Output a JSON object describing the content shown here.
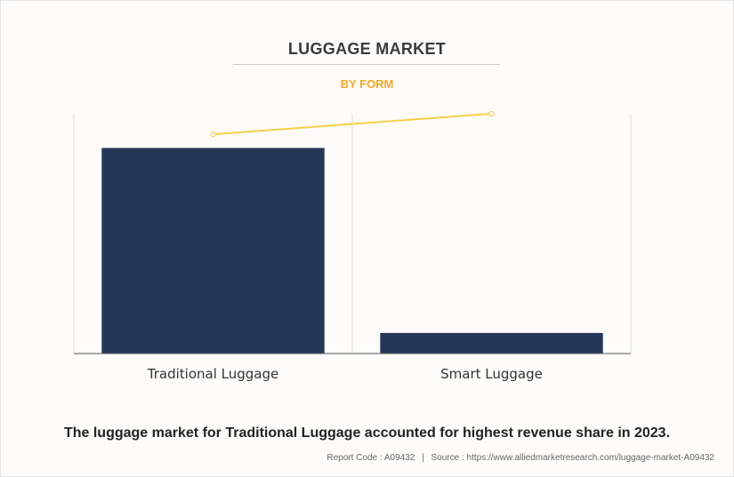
{
  "header": {
    "title": "LUGGAGE MARKET",
    "subtitle": "BY FORM"
  },
  "chart_data": {
    "type": "bar",
    "categories": [
      "Traditional Luggage",
      "Smart Luggage"
    ],
    "values": [
      90,
      9
    ],
    "trend_line": [
      96,
      105
    ],
    "ylim": [
      0,
      105
    ],
    "grid": "vertical separators",
    "legend": "none",
    "colors": {
      "bar": "#263859",
      "trend": "#f7cf45",
      "grid": "#dddddd",
      "axis": "#555555"
    }
  },
  "caption": "The luggage market for Traditional Luggage accounted for highest revenue share in 2023.",
  "footer": {
    "report_code": "Report Code : A09432",
    "separator": "|",
    "source": "Source : https://www.alliedmarketresearch.com/luggage-market-A09432"
  }
}
